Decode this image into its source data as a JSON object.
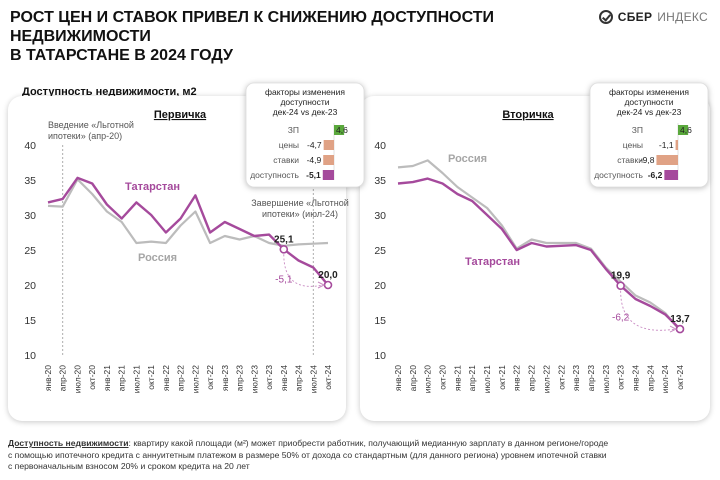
{
  "header": {
    "title_line1": "РОСТ ЦЕН И СТАВОК ПРИВЕЛ К СНИЖЕНИЮ ДОСТУПНОСТИ НЕДВИЖИМОСТИ",
    "title_line2": "В ТАТАРСТАНЕ В 2024 ГОДУ",
    "brand_bold": "СБЕР",
    "brand_light": "ИНДЕКС",
    "subtitle": "Доступность недвижимости, м2"
  },
  "footnote": {
    "term": "Доступность недвижимости",
    "line1": ": квартиру какой площади (м²) может приобрести работник, получающий медианную зарплату в данном регионе/городе",
    "line2": "с помощью ипотечного кредита с аннуитетным платежом в размере 50% от дохода со стандартным (для данного региона) уровнем ипотечной ставки",
    "line3": "с первоначальным взносом 20% и сроком кредита на 20 лет"
  },
  "colors": {
    "tatarstan": "#a54a9c",
    "russia": "#bcbcbc",
    "positive": "#5aa83c",
    "negative": "#e0a285",
    "total": "#a54a9c"
  },
  "chart_data": [
    {
      "type": "line",
      "title": "Первичка",
      "ylim": [
        10,
        40
      ],
      "yticks": [
        10,
        15,
        20,
        25,
        30,
        35,
        40
      ],
      "x": [
        "янв-20",
        "апр-20",
        "июл-20",
        "окт-20",
        "янв-21",
        "апр-21",
        "июл-21",
        "окт-21",
        "янв-22",
        "апр-22",
        "июл-22",
        "окт-22",
        "янв-23",
        "апр-23",
        "июл-23",
        "окт-23",
        "янв-24",
        "апр-24",
        "июл-24",
        "окт-24"
      ],
      "series": [
        {
          "name": "Татарстан",
          "values": [
            31.8,
            32.3,
            35.3,
            34.5,
            31.5,
            29.5,
            31.8,
            30.0,
            27.5,
            29.5,
            32.8,
            27.5,
            29.0,
            28.0,
            27.0,
            27.2,
            25.1,
            23.5,
            22.5,
            20.0
          ]
        },
        {
          "name": "Россия",
          "values": [
            31.3,
            31.2,
            35.1,
            33.0,
            30.5,
            29.0,
            26.0,
            26.2,
            26.0,
            28.5,
            30.5,
            26.0,
            27.0,
            26.5,
            27.0,
            26.0,
            25.6,
            25.8,
            25.9,
            26.0
          ]
        }
      ],
      "data_labels": [
        {
          "x": "янв-24",
          "value": "25,1"
        },
        {
          "x": "окт-24",
          "value": "20,0"
        }
      ],
      "change_label": "-5,1",
      "annotations": [
        {
          "x": "апр-20",
          "line1": "Введение «Льготной",
          "line2": "ипотеки» (апр-20)"
        },
        {
          "x": "июл-24",
          "line1": "Завершение «Льготной",
          "line2": "ипотеки» (июл-24)"
        }
      ],
      "factors": {
        "title_line1": "факторы изменения",
        "title_line2": "доступности",
        "title_line3": "дек-24 vs дек-23",
        "items": [
          {
            "label": "ЗП",
            "value": 4.6,
            "value_label": "4,6",
            "kind": "positive"
          },
          {
            "label": "цены",
            "value": -4.7,
            "value_label": "-4,7",
            "kind": "negative"
          },
          {
            "label": "ставки",
            "value": -4.9,
            "value_label": "-4,9",
            "kind": "negative"
          },
          {
            "label": "доступность",
            "value": -5.1,
            "value_label": "-5,1",
            "kind": "total"
          }
        ]
      }
    },
    {
      "type": "line",
      "title": "Вторичка",
      "ylim": [
        10,
        40
      ],
      "yticks": [
        10,
        15,
        20,
        25,
        30,
        35,
        40
      ],
      "x": [
        "янв-20",
        "апр-20",
        "июл-20",
        "окт-20",
        "янв-21",
        "апр-21",
        "июл-21",
        "окт-21",
        "янв-22",
        "апр-22",
        "июл-22",
        "окт-22",
        "янв-23",
        "апр-23",
        "июл-23",
        "окт-23",
        "янв-24",
        "апр-24",
        "июл-24",
        "окт-24"
      ],
      "series": [
        {
          "name": "Россия",
          "values": [
            36.8,
            37.0,
            37.8,
            36.0,
            34.0,
            32.5,
            31.0,
            28.5,
            25.2,
            26.5,
            26.0,
            26.0,
            26.0,
            25.2,
            22.5,
            20.5,
            18.5,
            17.5,
            16.0,
            13.5
          ]
        },
        {
          "name": "Татарстан",
          "values": [
            34.5,
            34.7,
            35.2,
            34.5,
            33.0,
            32.0,
            30.0,
            28.0,
            25.0,
            26.0,
            25.5,
            25.6,
            25.7,
            25.0,
            22.3,
            19.9,
            18.0,
            17.0,
            15.8,
            13.7
          ]
        }
      ],
      "data_labels": [
        {
          "x": "окт-23",
          "value": "19,9"
        },
        {
          "x": "окт-24",
          "value": "13,7"
        }
      ],
      "change_label": "-6,2",
      "annotations": [],
      "factors": {
        "title_line1": "факторы изменения",
        "title_line2": "доступности",
        "title_line3": "дек-24 vs дек-23",
        "items": [
          {
            "label": "ЗП",
            "value": 4.6,
            "value_label": "4,6",
            "kind": "positive"
          },
          {
            "label": "цены",
            "value": -1.1,
            "value_label": "-1,1",
            "kind": "negative"
          },
          {
            "label": "ставки",
            "value": -9.8,
            "value_label": "-9,8",
            "kind": "negative"
          },
          {
            "label": "доступность",
            "value": -6.2,
            "value_label": "-6,2",
            "kind": "total"
          }
        ]
      }
    }
  ]
}
